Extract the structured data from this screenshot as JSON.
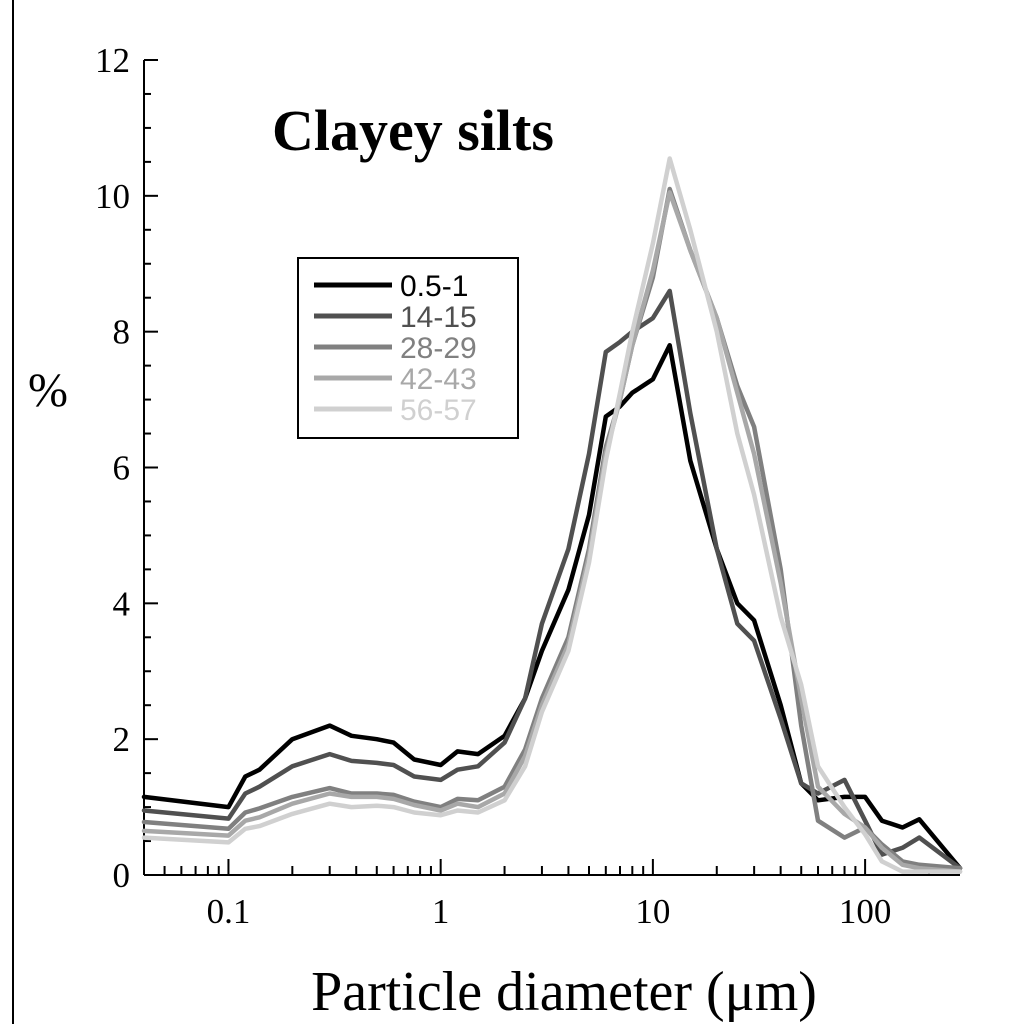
{
  "chart_data": {
    "type": "line",
    "title": "Clayey silts",
    "xlabel": "Particle diameter (μm)",
    "ylabel": "%",
    "xscale": "log",
    "xlim": [
      0.04,
      280
    ],
    "ylim": [
      0,
      12
    ],
    "x_tick_labels": [
      "0.1",
      "1",
      "10",
      "100"
    ],
    "y_tick_labels": [
      "0",
      "2",
      "4",
      "6",
      "8",
      "10",
      "12"
    ],
    "grid": false,
    "legend_position": "upper-left",
    "series": [
      {
        "name": "0.5-1",
        "color": "#000000",
        "x": [
          0.04,
          0.1,
          0.12,
          0.14,
          0.2,
          0.3,
          0.38,
          0.5,
          0.6,
          0.75,
          1.0,
          1.2,
          1.5,
          2.0,
          2.5,
          3.0,
          4.0,
          5.0,
          6.0,
          7.0,
          8.0,
          10.0,
          12.0,
          15.0,
          20.0,
          25.0,
          30.0,
          40.0,
          50.0,
          60.0,
          80.0,
          100.0,
          120.0,
          150.0,
          180.0,
          280.0
        ],
        "y": [
          1.15,
          1.0,
          1.45,
          1.55,
          2.0,
          2.2,
          2.05,
          2.0,
          1.95,
          1.7,
          1.62,
          1.82,
          1.78,
          2.05,
          2.6,
          3.3,
          4.2,
          5.3,
          6.75,
          6.9,
          7.1,
          7.3,
          7.8,
          6.1,
          4.8,
          4.0,
          3.75,
          2.5,
          1.35,
          1.1,
          1.15,
          1.15,
          0.8,
          0.7,
          0.82,
          0.1
        ]
      },
      {
        "name": "14-15",
        "color": "#505050",
        "x": [
          0.04,
          0.1,
          0.12,
          0.14,
          0.2,
          0.3,
          0.38,
          0.5,
          0.6,
          0.75,
          1.0,
          1.2,
          1.5,
          2.0,
          2.5,
          3.0,
          4.0,
          5.0,
          6.0,
          7.0,
          8.0,
          10.0,
          12.0,
          15.0,
          20.0,
          25.0,
          30.0,
          40.0,
          50.0,
          60.0,
          80.0,
          100.0,
          120.0,
          150.0,
          180.0,
          280.0
        ],
        "y": [
          0.95,
          0.83,
          1.2,
          1.3,
          1.6,
          1.78,
          1.68,
          1.65,
          1.62,
          1.45,
          1.4,
          1.55,
          1.6,
          1.95,
          2.6,
          3.7,
          4.8,
          6.2,
          7.7,
          7.85,
          8.0,
          8.2,
          8.6,
          6.8,
          4.8,
          3.7,
          3.45,
          2.3,
          1.35,
          1.2,
          1.4,
          0.8,
          0.3,
          0.4,
          0.55,
          0.1
        ]
      },
      {
        "name": "28-29",
        "color": "#808080",
        "x": [
          0.04,
          0.1,
          0.12,
          0.14,
          0.2,
          0.3,
          0.38,
          0.5,
          0.6,
          0.75,
          1.0,
          1.2,
          1.5,
          2.0,
          2.5,
          3.0,
          4.0,
          5.0,
          6.0,
          7.0,
          8.0,
          10.0,
          12.0,
          15.0,
          20.0,
          25.0,
          30.0,
          40.0,
          50.0,
          60.0,
          80.0,
          100.0,
          120.0,
          150.0,
          180.0,
          280.0
        ],
        "y": [
          0.78,
          0.68,
          0.92,
          0.98,
          1.15,
          1.28,
          1.2,
          1.2,
          1.18,
          1.08,
          1.0,
          1.12,
          1.1,
          1.3,
          1.85,
          2.6,
          3.5,
          4.8,
          6.3,
          7.0,
          7.8,
          8.8,
          10.1,
          9.2,
          8.2,
          7.2,
          6.6,
          4.5,
          2.2,
          0.8,
          0.55,
          0.7,
          0.45,
          0.2,
          0.15,
          0.1
        ]
      },
      {
        "name": "42-43",
        "color": "#a8a8a8",
        "x": [
          0.04,
          0.1,
          0.12,
          0.14,
          0.2,
          0.3,
          0.38,
          0.5,
          0.6,
          0.75,
          1.0,
          1.2,
          1.5,
          2.0,
          2.5,
          3.0,
          4.0,
          5.0,
          6.0,
          7.0,
          8.0,
          10.0,
          12.0,
          15.0,
          20.0,
          25.0,
          30.0,
          40.0,
          50.0,
          60.0,
          80.0,
          100.0,
          120.0,
          150.0,
          180.0,
          280.0
        ],
        "y": [
          0.65,
          0.58,
          0.8,
          0.85,
          1.05,
          1.2,
          1.15,
          1.15,
          1.12,
          1.03,
          0.95,
          1.05,
          1.0,
          1.2,
          1.75,
          2.5,
          3.4,
          4.7,
          6.2,
          7.0,
          7.8,
          8.9,
          10.05,
          9.2,
          8.2,
          7.1,
          6.2,
          4.3,
          2.6,
          1.3,
          0.9,
          0.7,
          0.4,
          0.15,
          0.1,
          0.05
        ]
      },
      {
        "name": "56-57",
        "color": "#d0d0d0",
        "x": [
          0.04,
          0.1,
          0.12,
          0.14,
          0.2,
          0.3,
          0.38,
          0.5,
          0.6,
          0.75,
          1.0,
          1.2,
          1.5,
          2.0,
          2.5,
          3.0,
          4.0,
          5.0,
          6.0,
          7.0,
          8.0,
          10.0,
          12.0,
          15.0,
          20.0,
          25.0,
          30.0,
          40.0,
          50.0,
          60.0,
          80.0,
          100.0,
          120.0,
          150.0,
          180.0,
          280.0
        ],
        "y": [
          0.55,
          0.48,
          0.68,
          0.72,
          0.9,
          1.05,
          1.0,
          1.02,
          1.0,
          0.92,
          0.88,
          0.95,
          0.92,
          1.1,
          1.6,
          2.4,
          3.3,
          4.6,
          6.1,
          7.1,
          8.0,
          9.3,
          10.55,
          9.5,
          8.0,
          6.5,
          5.6,
          3.8,
          2.8,
          1.6,
          1.0,
          0.6,
          0.2,
          0.05,
          0.05,
          0.05
        ]
      }
    ]
  }
}
